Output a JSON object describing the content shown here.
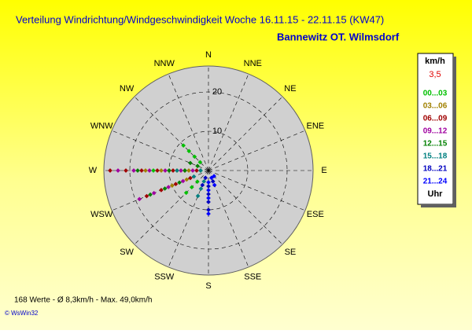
{
  "chart_data": {
    "type": "polar-scatter",
    "title": "Verteilung Windrichtung/Windgeschwindigkeit  Woche 16.11.15 - 22.11.15 (KW47)",
    "subtitle": "Bannewitz OT. Wilmsdorf",
    "direction_labels": [
      "N",
      "NNE",
      "NE",
      "ENE",
      "E",
      "ESE",
      "SE",
      "SSE",
      "S",
      "SSW",
      "SW",
      "WSW",
      "W",
      "WNW",
      "NW",
      "NNW"
    ],
    "rlim": [
      0,
      26.6
    ],
    "rticks": [
      10,
      20
    ],
    "legend": {
      "unit": "km/h",
      "current": "3,5",
      "footer": "Uhr"
    },
    "series": [
      {
        "name": "00...03",
        "color": "#00c000",
        "direction": [
          315,
          315,
          315,
          315,
          225,
          225,
          225,
          270,
          270,
          270
        ],
        "values": [
          3,
          5,
          7,
          9,
          4,
          6,
          8,
          2,
          10,
          14
        ]
      },
      {
        "name": "03...06",
        "color": "#a08000",
        "direction": [
          270,
          270,
          270,
          270,
          247.5,
          247.5
        ],
        "values": [
          5,
          8,
          12,
          16,
          6,
          10
        ]
      },
      {
        "name": "06...09",
        "color": "#a00000",
        "direction": [
          270,
          270,
          270,
          270,
          270,
          270,
          270,
          247.5,
          247.5,
          247.5,
          247.5
        ],
        "values": [
          3,
          6,
          9,
          13,
          17,
          21,
          25,
          5,
          9,
          13,
          17
        ]
      },
      {
        "name": "09...12",
        "color": "#a000a0",
        "direction": [
          270,
          270,
          270,
          270,
          270,
          270,
          247.5,
          247.5,
          247.5,
          247.5
        ],
        "values": [
          4,
          7,
          11,
          15,
          19,
          23,
          7,
          11,
          15,
          19
        ]
      },
      {
        "name": "12...15",
        "color": "#008000",
        "direction": [
          270,
          270,
          270,
          247.5,
          247.5,
          247.5,
          292.5,
          292.5
        ],
        "values": [
          6,
          10,
          18,
          8,
          12,
          16,
          3,
          5
        ]
      },
      {
        "name": "15...18",
        "color": "#008080",
        "direction": [
          270,
          270,
          202.5,
          202.5,
          202.5,
          247.5
        ],
        "values": [
          2,
          8,
          3,
          5,
          7,
          4
        ]
      },
      {
        "name": "18...21",
        "color": "#0000c0",
        "direction": [
          180,
          180,
          180,
          180,
          202.5,
          202.5,
          157.5
        ],
        "values": [
          4,
          6,
          8,
          10,
          2,
          4,
          3
        ]
      },
      {
        "name": "21...24",
        "color": "#0000ff",
        "direction": [
          180,
          180,
          180,
          180,
          157.5,
          157.5,
          135
        ],
        "values": [
          3,
          5,
          7,
          11,
          2,
          4,
          2
        ]
      }
    ],
    "footer": "168 Werte   -   Ø 8,3km/h  -  Max. 49,0km/h",
    "copyright": "© WsWin32"
  }
}
